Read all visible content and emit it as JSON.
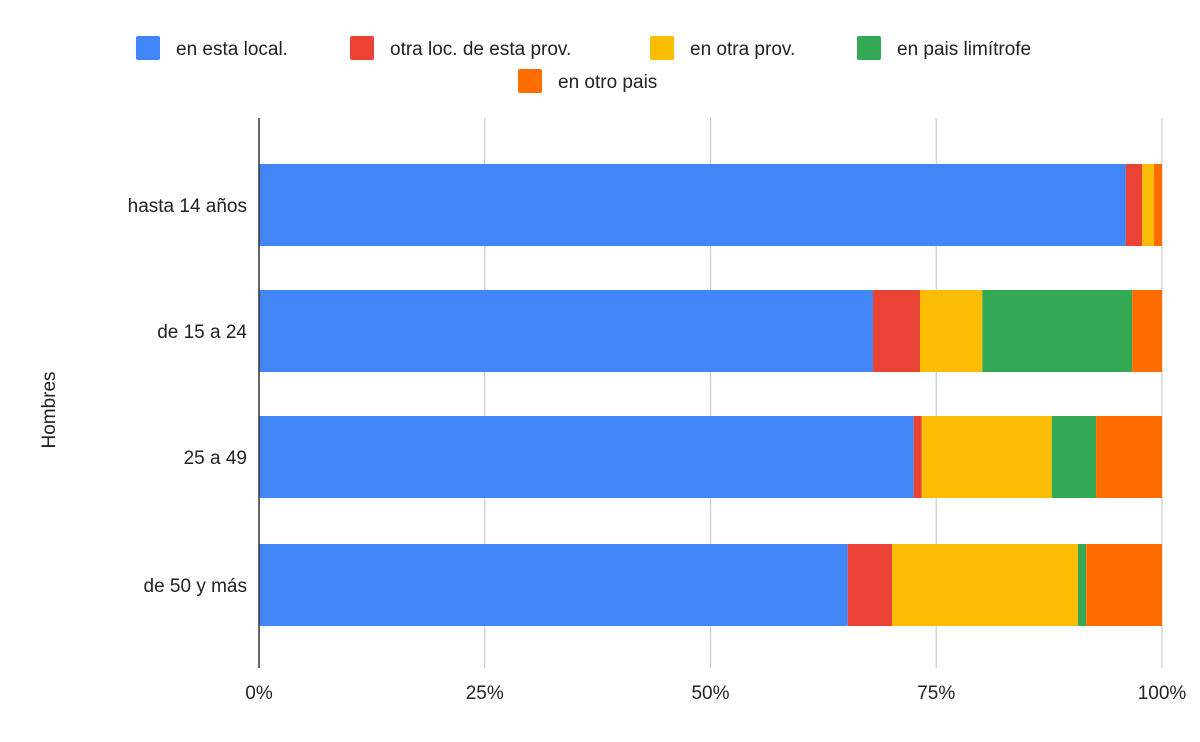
{
  "chart_data": {
    "type": "bar",
    "orientation": "horizontal",
    "stacked": "percent",
    "title": "",
    "xlabel": "",
    "ylabel": "Hombres",
    "xlim": [
      0,
      100
    ],
    "x_ticks": [
      "0%",
      "25%",
      "50%",
      "75%",
      "100%"
    ],
    "grid": true,
    "legend_position": "top",
    "categories": [
      "hasta 14 años",
      "de 15 a 24",
      "25 a 49",
      "de 50 y más"
    ],
    "series": [
      {
        "name": "en esta local.",
        "color": "#4285F4",
        "values": [
          96.0,
          68.0,
          72.5,
          65.2
        ]
      },
      {
        "name": "otra loc. de esta prov.",
        "color": "#EA4335",
        "values": [
          1.8,
          5.2,
          0.9,
          4.9
        ]
      },
      {
        "name": "en otra prov.",
        "color": "#FBBC04",
        "values": [
          1.3,
          6.9,
          14.4,
          20.6
        ]
      },
      {
        "name": "en pais limítrofe",
        "color": "#34A853",
        "values": [
          0.0,
          16.6,
          4.9,
          0.9
        ]
      },
      {
        "name": "en otro pais",
        "color": "#FF6D01",
        "values": [
          0.9,
          3.3,
          7.3,
          8.4
        ]
      }
    ]
  }
}
